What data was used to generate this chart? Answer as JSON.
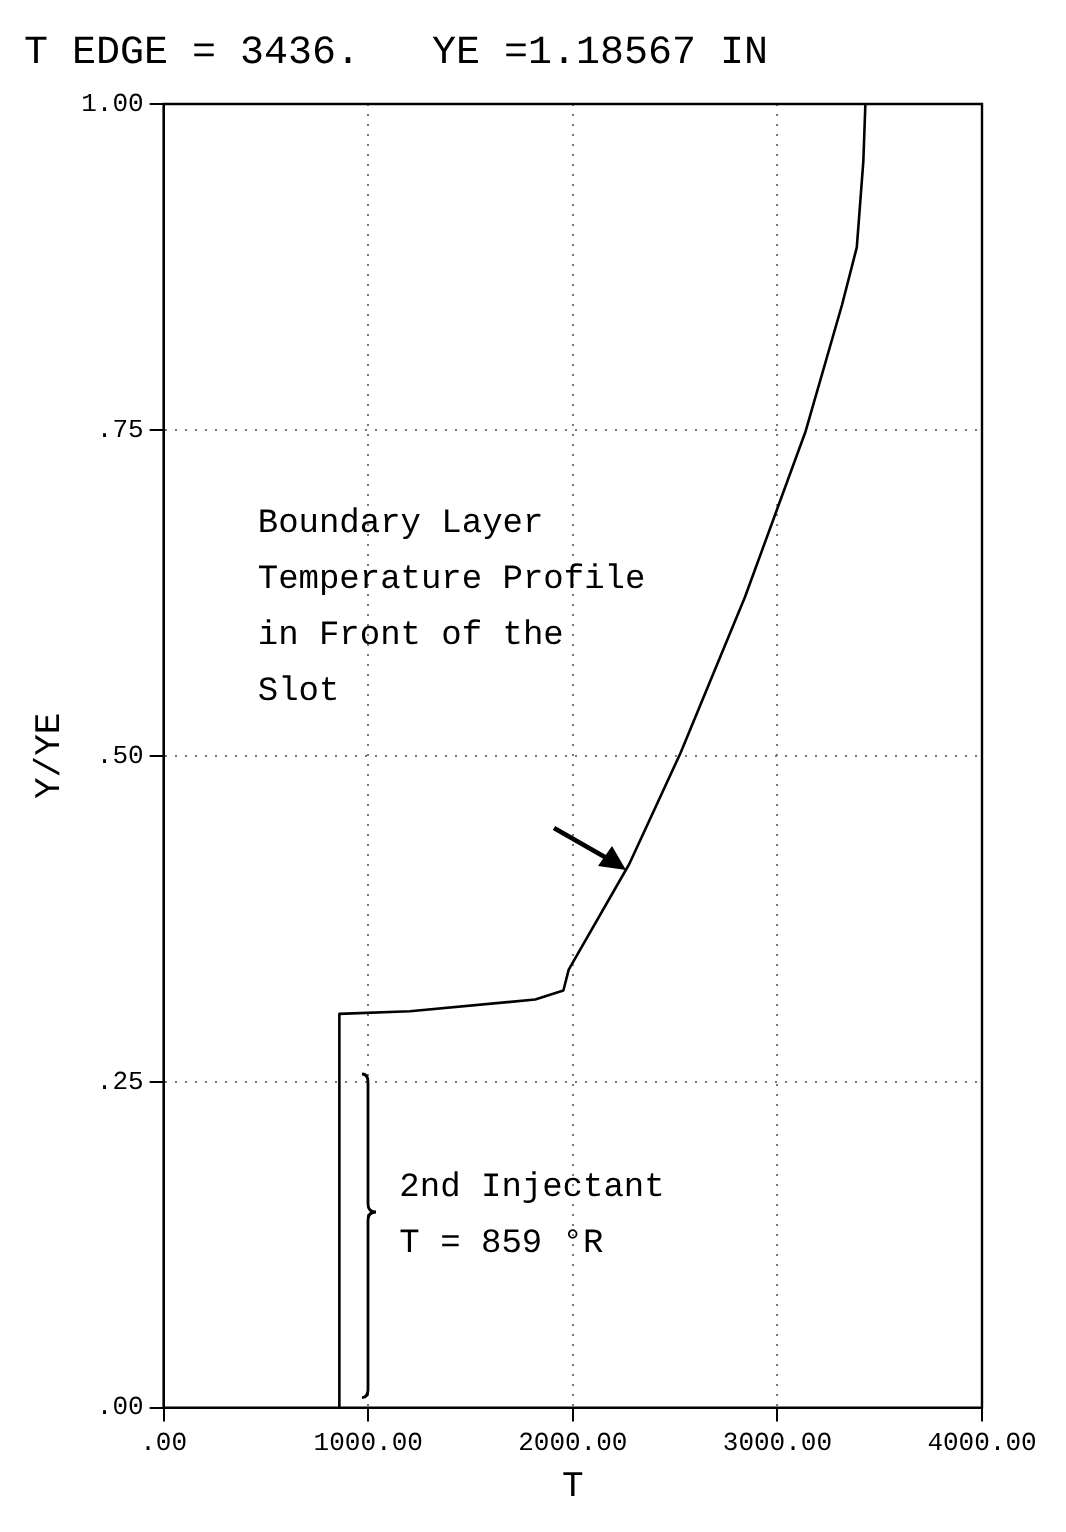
{
  "chart_data": {
    "type": "line",
    "title": "T EDGE = 3436.   YE =1.18567 IN",
    "xlabel": "T",
    "ylabel": "Y/YE",
    "x": [
      3430,
      3420,
      3388,
      3316,
      3138,
      2842,
      2526,
      2276,
      1980,
      1954,
      1816,
      1204,
      859,
      859
    ],
    "series": [
      {
        "color": "#000000",
        "values": [
          1.0,
          0.956,
          0.89,
          0.846,
          0.749,
          0.622,
          0.502,
          0.417,
          0.336,
          0.32,
          0.313,
          0.304,
          0.302,
          0.0
        ]
      }
    ],
    "xlim": [
      0,
      4000
    ],
    "xticks": [
      {
        "value": 0,
        "label": ".00"
      },
      {
        "value": 1000,
        "label": "1000.00"
      },
      {
        "value": 2000,
        "label": "2000.00"
      },
      {
        "value": 3000,
        "label": "3000.00"
      },
      {
        "value": 4000,
        "label": "4000.00"
      }
    ],
    "ylim": [
      0,
      1
    ],
    "yticks": [
      {
        "value": 0,
        "label": ".00"
      },
      {
        "value": 0.25,
        "label": ".25"
      },
      {
        "value": 0.5,
        "label": ".50"
      },
      {
        "value": 0.75,
        "label": ".75"
      },
      {
        "value": 1,
        "label": "1.00"
      }
    ],
    "annotations": [
      "Boundary Layer\nTemperature Profile\nin Front of the\nSlot",
      {
        "text": "2nd Injectant\nT = 859 °R",
        "x": 859,
        "y": 0.15
      }
    ],
    "grid": true,
    "legend": false,
    "marker": "none",
    "line_style": "solid"
  }
}
